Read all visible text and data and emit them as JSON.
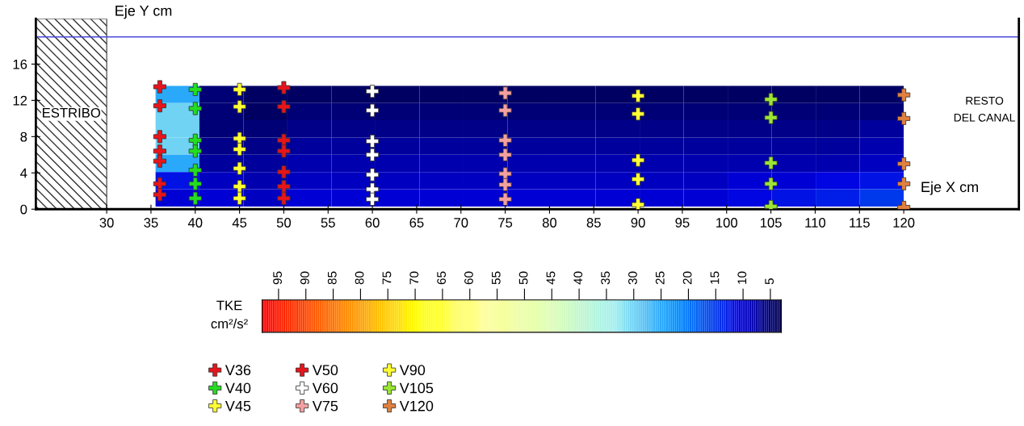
{
  "chart_data": [
    {
      "type": "heatmap",
      "tick_labels": false,
      "categories": [
        null,
        null,
        null,
        null,
        null,
        null,
        null,
        null,
        null,
        null,
        null,
        null,
        null,
        null,
        null,
        null,
        null
      ],
      "y_categories": [
        null,
        null,
        null,
        null,
        null,
        null,
        null
      ],
      "cells": [
        [
          25,
          5,
          4,
          4,
          4,
          4,
          4,
          4,
          4,
          4,
          4,
          4,
          4,
          4,
          4,
          4,
          4
        ],
        [
          30,
          5,
          4,
          5,
          5,
          5,
          5,
          5,
          5,
          5,
          5,
          5,
          5,
          5,
          5,
          5,
          5
        ],
        [
          30,
          5,
          5,
          6,
          6,
          6,
          6,
          6,
          6,
          6,
          6,
          6,
          6,
          6,
          6,
          6,
          7
        ],
        [
          30,
          6,
          6,
          7,
          7,
          7,
          7,
          7,
          7,
          7,
          7,
          7,
          7,
          7,
          7,
          7,
          8
        ],
        [
          25,
          7,
          7,
          8,
          8,
          8,
          8,
          8,
          8,
          8,
          8,
          8,
          8,
          8,
          8,
          8,
          9
        ],
        [
          12,
          9,
          8,
          9,
          9,
          9,
          9,
          9,
          9,
          9,
          9,
          9,
          9,
          10,
          10,
          11,
          12
        ],
        [
          10,
          10,
          9,
          10,
          10,
          10,
          10,
          10,
          10,
          10,
          10,
          10,
          10,
          11,
          12,
          13,
          15
        ]
      ],
      "clabel": "TKE\ncm²/s²",
      "clim": [
        98,
        3
      ],
      "cticks": [
        95,
        90,
        85,
        80,
        75,
        70,
        65,
        60,
        55,
        50,
        45,
        40,
        35,
        30,
        25,
        20,
        15,
        10,
        5
      ]
    },
    {
      "type": "scatter",
      "marker": "cross",
      "legend": "bottom left",
      "grid": false,
      "xlabel": "Eje X cm",
      "ylabel": "Eje Y cm",
      "xlim": [
        22,
        133
      ],
      "ylim": [
        0,
        21
      ],
      "xticks": [
        30,
        35,
        40,
        45,
        50,
        55,
        60,
        65,
        70,
        75,
        80,
        85,
        90,
        95,
        100,
        105,
        110,
        115,
        120
      ],
      "yticks": [
        0,
        4,
        8,
        12,
        16
      ],
      "bands": [
        {
          "axis": "x",
          "from": 22,
          "to": 30,
          "label": "ESTRIBO"
        }
      ],
      "ref_lines": [
        {
          "axis": "y",
          "value": 19,
          "color": "#4a4adc"
        }
      ],
      "annotations": [
        "RESTO\nDEL CANAL"
      ],
      "series": [
        {
          "name": "V36",
          "color": "#e8141b",
          "x": [
            36,
            36,
            36,
            36,
            36,
            36,
            36
          ],
          "values": [
            13.5,
            11.4,
            8.0,
            6.4,
            5.3,
            2.8,
            1.6
          ]
        },
        {
          "name": "V40",
          "color": "#22dd22",
          "x": [
            40,
            40,
            40,
            40,
            40,
            40,
            40
          ],
          "values": [
            13.2,
            11.1,
            7.6,
            6.4,
            4.3,
            2.8,
            1.2
          ]
        },
        {
          "name": "V45",
          "color": "#ffff33",
          "x": [
            45,
            45,
            45,
            45,
            45,
            45,
            45
          ],
          "values": [
            13.2,
            11.3,
            7.8,
            6.6,
            4.5,
            2.5,
            1.2
          ]
        },
        {
          "name": "V50",
          "color": "#e8141b",
          "x": [
            50,
            50,
            50,
            50,
            50,
            50,
            50
          ],
          "values": [
            13.4,
            11.3,
            7.6,
            6.4,
            4.1,
            2.5,
            1.2
          ]
        },
        {
          "name": "V60",
          "color": "#ffffff",
          "x": [
            60,
            60,
            60,
            60,
            60,
            60,
            60
          ],
          "values": [
            13.0,
            10.9,
            7.5,
            6.0,
            3.8,
            2.2,
            1.1
          ]
        },
        {
          "name": "V75",
          "color": "#f4a0a0",
          "x": [
            75,
            75,
            75,
            75,
            75,
            75,
            75
          ],
          "values": [
            12.8,
            10.9,
            7.6,
            6.0,
            3.9,
            2.7,
            1.1
          ]
        },
        {
          "name": "V90",
          "color": "#ffff33",
          "x": [
            90,
            90,
            90,
            90,
            90
          ],
          "values": [
            12.5,
            10.5,
            5.4,
            3.3,
            0.5
          ]
        },
        {
          "name": "V105",
          "color": "#99e633",
          "x": [
            105,
            105,
            105,
            105,
            105
          ],
          "values": [
            12.1,
            10.1,
            5.1,
            2.8,
            0.3
          ]
        },
        {
          "name": "V120",
          "color": "#e08040",
          "x": [
            120,
            120,
            120,
            120,
            120
          ],
          "values": [
            12.6,
            10.0,
            5.0,
            2.8,
            0.2
          ]
        }
      ]
    }
  ]
}
